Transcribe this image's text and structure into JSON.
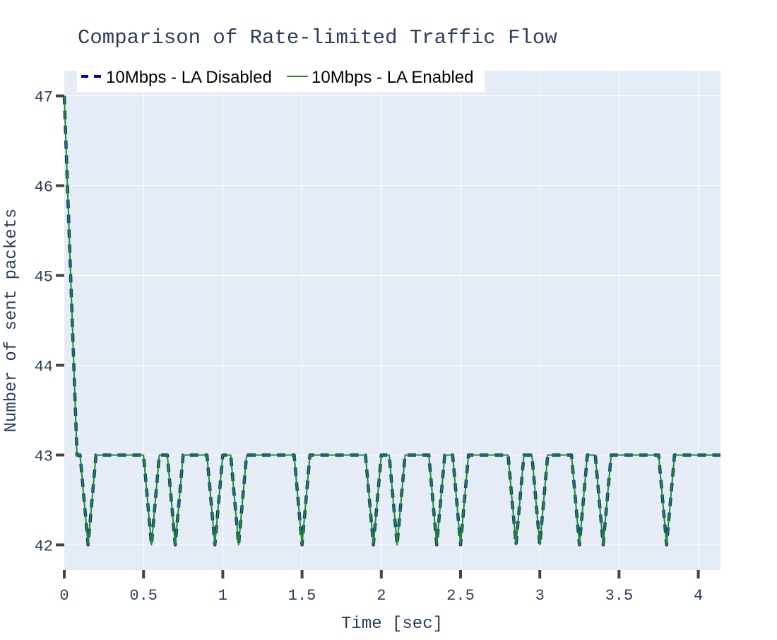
{
  "chart_data": {
    "type": "line",
    "title": "Comparison of Rate-limited Traffic Flow",
    "xlabel": "Time [sec]",
    "ylabel": "Number of sent packets",
    "xlim": [
      0,
      4.14
    ],
    "ylim": [
      41.72,
      47.28
    ],
    "xticks": [
      0,
      0.5,
      1,
      1.5,
      2,
      2.5,
      3,
      3.5,
      4
    ],
    "xtick_labels": [
      "0",
      "0.5",
      "1",
      "1.5",
      "2",
      "2.5",
      "3",
      "3.5",
      "4"
    ],
    "yticks": [
      42,
      43,
      44,
      45,
      46,
      47
    ],
    "ytick_labels": [
      "42",
      "43",
      "44",
      "45",
      "46",
      "47"
    ],
    "grid": true,
    "legend_position": "top-left",
    "colors": {
      "plot_background": "#e5ecf6",
      "grid": "#ffffff",
      "text": "#2a3f5f"
    },
    "x": [
      0,
      0.02,
      0.04,
      0.06,
      0.08,
      0.1,
      0.15,
      0.2,
      0.25,
      0.3,
      0.35,
      0.4,
      0.45,
      0.5,
      0.55,
      0.6,
      0.65,
      0.7,
      0.75,
      0.8,
      0.85,
      0.9,
      0.95,
      1.0,
      1.05,
      1.1,
      1.15,
      1.2,
      1.25,
      1.3,
      1.35,
      1.4,
      1.45,
      1.5,
      1.55,
      1.6,
      1.65,
      1.7,
      1.75,
      1.8,
      1.85,
      1.9,
      1.95,
      2.0,
      2.05,
      2.1,
      2.15,
      2.2,
      2.25,
      2.3,
      2.35,
      2.4,
      2.45,
      2.5,
      2.55,
      2.6,
      2.65,
      2.7,
      2.75,
      2.8,
      2.85,
      2.9,
      2.95,
      3.0,
      3.05,
      3.1,
      3.15,
      3.2,
      3.25,
      3.3,
      3.35,
      3.4,
      3.45,
      3.5,
      3.55,
      3.6,
      3.65,
      3.7,
      3.75,
      3.8,
      3.85,
      3.9,
      3.95,
      4.0,
      4.05,
      4.1,
      4.14
    ],
    "series": [
      {
        "name": "10Mbps - LA Disabled",
        "color": "#0000cc",
        "dash": "dashed",
        "y": [
          47,
          46,
          45,
          44,
          43,
          43,
          42,
          43,
          43,
          43,
          43,
          43,
          43,
          43,
          42,
          43,
          43,
          42,
          43,
          43,
          43,
          43,
          42,
          43,
          43,
          42,
          43,
          43,
          43,
          43,
          43,
          43,
          43,
          42,
          43,
          43,
          43,
          43,
          43,
          43,
          43,
          43,
          42,
          43,
          43,
          42,
          43,
          43,
          43,
          43,
          42,
          43,
          43,
          42,
          43,
          43,
          43,
          43,
          43,
          43,
          42,
          43,
          43,
          42,
          43,
          43,
          43,
          43,
          42,
          43,
          43,
          42,
          43,
          43,
          43,
          43,
          43,
          43,
          43,
          42,
          43,
          43,
          43,
          43,
          43,
          43,
          43
        ]
      },
      {
        "name": "10Mbps - LA Enabled",
        "color": "#228b22",
        "dash": "solid",
        "y": [
          47,
          46,
          45,
          44,
          43,
          43,
          42,
          43,
          43,
          43,
          43,
          43,
          43,
          43,
          42,
          43,
          43,
          42,
          43,
          43,
          43,
          43,
          42,
          43,
          43,
          42,
          43,
          43,
          43,
          43,
          43,
          43,
          43,
          42,
          43,
          43,
          43,
          43,
          43,
          43,
          43,
          43,
          42,
          43,
          43,
          42,
          43,
          43,
          43,
          43,
          42,
          43,
          43,
          42,
          43,
          43,
          43,
          43,
          43,
          43,
          42,
          43,
          43,
          42,
          43,
          43,
          43,
          43,
          42,
          43,
          43,
          42,
          43,
          43,
          43,
          43,
          43,
          43,
          43,
          42,
          43,
          43,
          43,
          43,
          43,
          43,
          43
        ]
      }
    ]
  }
}
